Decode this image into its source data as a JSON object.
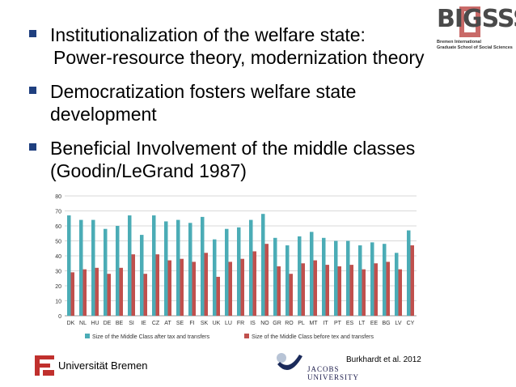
{
  "bullets": [
    {
      "lines": [
        "Institutionalization of the welfare state:",
        "Power-resource theory, modernization theory"
      ]
    },
    {
      "lines": [
        "Democratization fosters welfare state",
        "development"
      ]
    },
    {
      "lines": [
        "Beneficial Involvement of the middle classes",
        "(Goodin/LeGrand 1987)"
      ]
    }
  ],
  "logos": {
    "bigsss": {
      "word": "BIGSSS",
      "sub1": "Bremen International",
      "sub2": "Graduate School of Social Sciences"
    },
    "uni_bremen": "Universität Bremen",
    "jacobs": {
      "line1": "JACOBS",
      "line2": "UNIVERSITY"
    }
  },
  "citation": "Burkhardt et al. 2012",
  "colors": {
    "bullet": "#1f3f7f",
    "series_after": "#4bacb6",
    "series_before": "#c0504d",
    "grid": "#d9d9d9"
  },
  "chart_data": {
    "type": "bar",
    "categories": [
      "DK",
      "NL",
      "HU",
      "DE",
      "BE",
      "SI",
      "IE",
      "CZ",
      "AT",
      "SE",
      "FI",
      "SK",
      "UK",
      "LU",
      "FR",
      "IS",
      "NO",
      "GR",
      "RO",
      "PL",
      "MT",
      "IT",
      "PT",
      "ES",
      "LT",
      "EE",
      "BG",
      "LV",
      "CY"
    ],
    "series": [
      {
        "name": "Size of the Middle Class after tax and transfers",
        "values": [
          67,
          64,
          64,
          58,
          60,
          67,
          54,
          67,
          63,
          64,
          62,
          66,
          51,
          58,
          59,
          64,
          68,
          52,
          47,
          53,
          56,
          52,
          50,
          50,
          47,
          49,
          48,
          42,
          57
        ]
      },
      {
        "name": "Size of the Middle Class before tex and transfers",
        "values": [
          29,
          31,
          32,
          28,
          32,
          41,
          28,
          41,
          37,
          38,
          36,
          42,
          26,
          36,
          38,
          43,
          48,
          33,
          28,
          35,
          37,
          34,
          33,
          34,
          31,
          35,
          36,
          31,
          47
        ]
      }
    ],
    "ylim": [
      0,
      80
    ],
    "yticks": [
      "0",
      "10",
      "20",
      "30",
      "40",
      "50",
      "60",
      "70",
      "80"
    ],
    "grid": true,
    "legend": "bottom"
  }
}
